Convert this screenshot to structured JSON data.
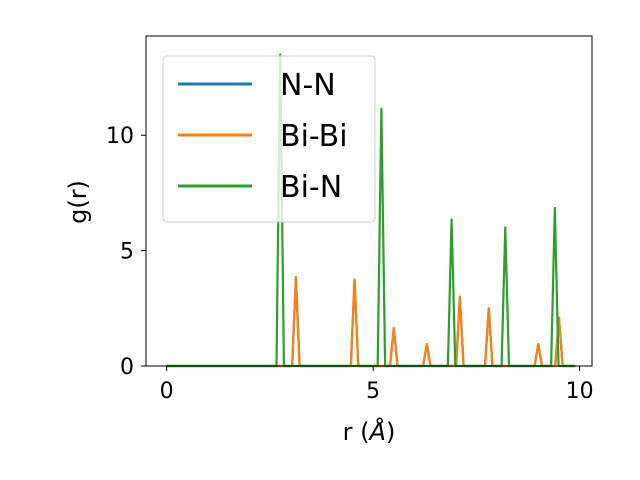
{
  "chart_data": {
    "type": "line",
    "title": "",
    "xlabel_main": "r (",
    "xlabel_unit": "Å",
    "xlabel_close": ")",
    "ylabel": "g(r)",
    "xlim": [
      -0.5,
      10.3
    ],
    "ylim": [
      0,
      14.3
    ],
    "xticks": [
      0,
      5,
      10
    ],
    "xtick_labels": [
      "0",
      "5",
      "10"
    ],
    "yticks": [
      0,
      5,
      10
    ],
    "ytick_labels": [
      "0",
      "5",
      "10"
    ],
    "grid": false,
    "legend_position": "upper-left",
    "peak_halfwidth": 0.09,
    "series": [
      {
        "name": "N-N",
        "color": "#1f77b4",
        "peaks": [
          [
            3.13,
            3.85
          ],
          [
            4.55,
            3.75
          ],
          [
            5.5,
            1.65
          ],
          [
            6.3,
            0.95
          ],
          [
            7.1,
            3.0
          ],
          [
            7.8,
            2.5
          ],
          [
            9.0,
            0.95
          ],
          [
            9.5,
            2.1
          ]
        ]
      },
      {
        "name": "Bi-Bi",
        "color": "#ff7f0e",
        "peaks": [
          [
            3.13,
            3.85
          ],
          [
            4.55,
            3.75
          ],
          [
            5.5,
            1.65
          ],
          [
            6.3,
            0.95
          ],
          [
            7.1,
            3.0
          ],
          [
            7.8,
            2.5
          ],
          [
            9.0,
            0.95
          ],
          [
            9.5,
            2.1
          ]
        ]
      },
      {
        "name": "Bi-N",
        "color": "#2ca02c",
        "peaks": [
          [
            2.75,
            13.5
          ],
          [
            5.2,
            11.15
          ],
          [
            6.9,
            6.35
          ],
          [
            8.2,
            6.0
          ],
          [
            9.4,
            6.85
          ]
        ]
      }
    ],
    "x_range": [
      0,
      9.9
    ]
  }
}
